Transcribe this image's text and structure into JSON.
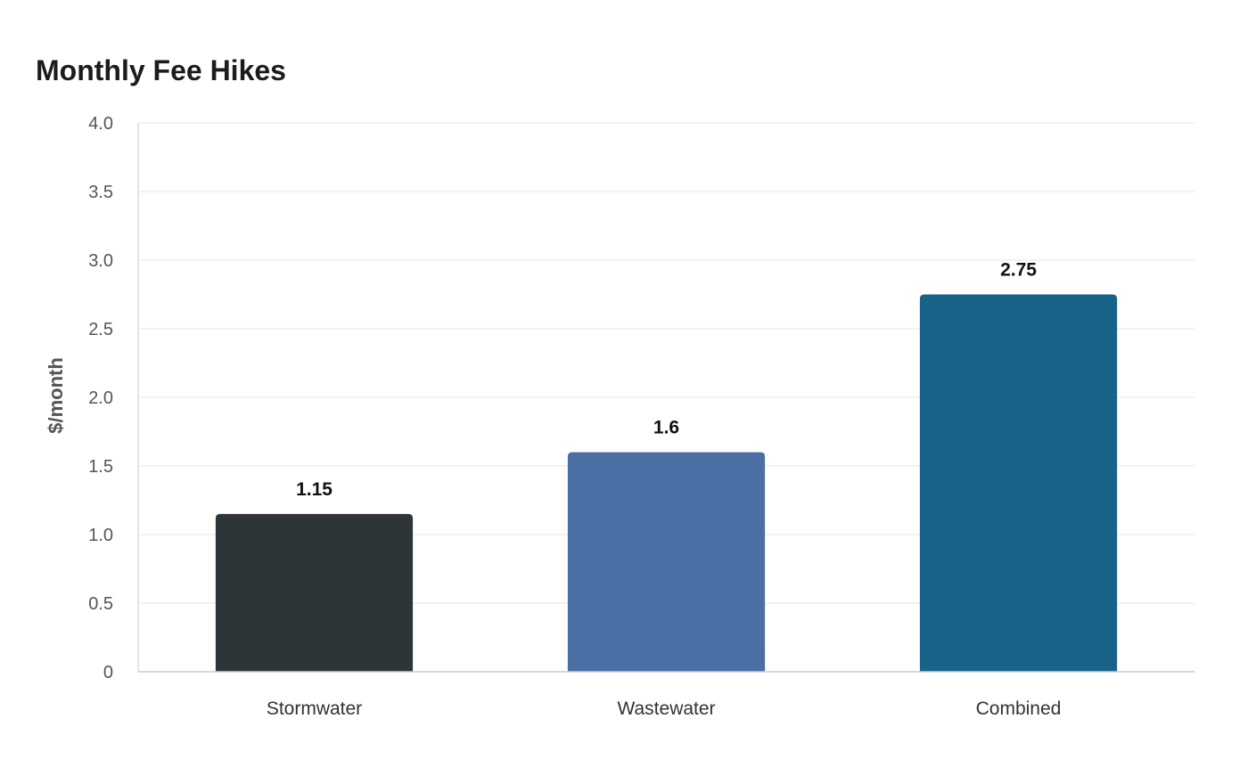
{
  "chart_data": {
    "type": "bar",
    "title": "Monthly Fee Hikes",
    "xlabel": "",
    "ylabel": "$/month",
    "categories": [
      "Stormwater",
      "Wastewater",
      "Combined"
    ],
    "values": [
      1.15,
      1.6,
      2.75
    ],
    "value_labels": [
      "1.15",
      "1.6",
      "2.75"
    ],
    "colors": [
      "#2e3538",
      "#4a6fa5",
      "#186189"
    ],
    "ylim": [
      0,
      4
    ],
    "yticks": [
      0,
      0.5,
      1,
      1.5,
      2,
      2.5,
      3,
      3.5,
      4
    ],
    "ytick_labels": [
      "0",
      "0.5",
      "1.0",
      "1.5",
      "2.0",
      "2.5",
      "3.0",
      "3.5",
      "4.0"
    ],
    "grid": true,
    "legend": "none"
  }
}
